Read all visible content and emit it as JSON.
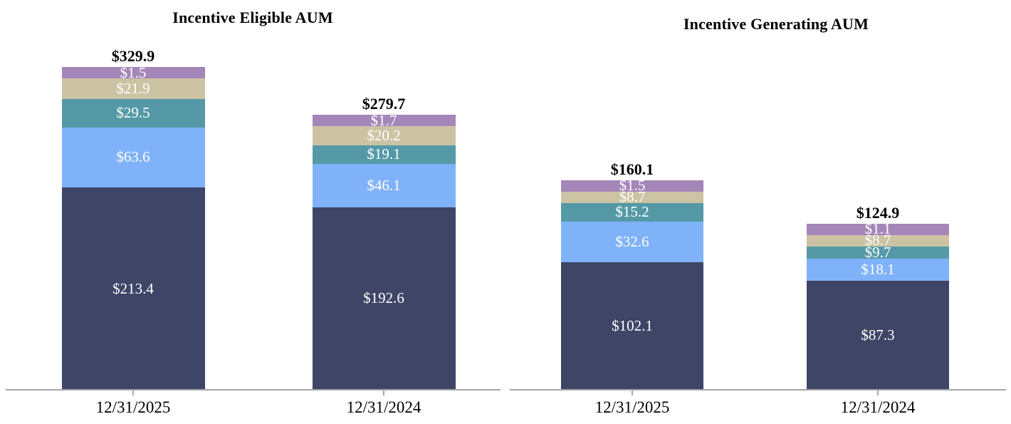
{
  "colors": {
    "background": "#ffffff",
    "axis_line": "#a6a6a6",
    "title_text": "#000000",
    "total_label_text": "#000000",
    "segment_label_text": "#ffffff",
    "segment_dark_navy": "#3f4567",
    "segment_light_blue": "#7fb2f8",
    "segment_teal": "#5599a7",
    "segment_tan": "#ccc3a4",
    "segment_purple": "#a486b8"
  },
  "chart_data": [
    {
      "type": "bar",
      "variant": "stacked-column",
      "title": "Incentive Eligible AUM",
      "categories": [
        "12/31/2025",
        "12/31/2024"
      ],
      "value_prefix": "$",
      "stack_order": "bottom-to-top",
      "series": [
        {
          "color_name": "dark-navy",
          "color": "#3f4567",
          "values": [
            213.4,
            192.6
          ]
        },
        {
          "color_name": "light-blue",
          "color": "#7fb2f8",
          "values": [
            63.6,
            46.1
          ]
        },
        {
          "color_name": "teal",
          "color": "#5599a7",
          "values": [
            29.5,
            19.1
          ]
        },
        {
          "color_name": "tan",
          "color": "#ccc3a4",
          "values": [
            21.9,
            20.2
          ]
        },
        {
          "color_name": "purple",
          "color": "#a486b8",
          "values": [
            1.5,
            1.7
          ]
        }
      ],
      "segment_labels": [
        [
          "$213.4",
          "$63.6",
          "$29.5",
          "$21.9",
          "$1.5"
        ],
        [
          "$192.6",
          "$46.1",
          "$19.1",
          "$20.2",
          "$1.7"
        ]
      ],
      "totals": [
        329.9,
        279.7
      ],
      "total_labels": [
        "$329.9",
        "$279.7"
      ],
      "legend": "none",
      "gridlines": false,
      "y_axis": "hidden"
    },
    {
      "type": "bar",
      "variant": "stacked-column",
      "title": "Incentive Generating AUM",
      "categories": [
        "12/31/2025",
        "12/31/2024"
      ],
      "value_prefix": "$",
      "stack_order": "bottom-to-top",
      "series": [
        {
          "color_name": "dark-navy",
          "color": "#3f4567",
          "values": [
            102.1,
            87.3
          ]
        },
        {
          "color_name": "light-blue",
          "color": "#7fb2f8",
          "values": [
            32.6,
            18.1
          ]
        },
        {
          "color_name": "teal",
          "color": "#5599a7",
          "values": [
            15.2,
            9.7
          ]
        },
        {
          "color_name": "tan",
          "color": "#ccc3a4",
          "values": [
            8.7,
            8.7
          ]
        },
        {
          "color_name": "purple",
          "color": "#a486b8",
          "values": [
            1.5,
            1.1
          ]
        }
      ],
      "segment_labels": [
        [
          "$102.1",
          "$32.6",
          "$15.2",
          "$8.7",
          "$1.5"
        ],
        [
          "$87.3",
          "$18.1",
          "$9.7",
          "$8.7",
          "$1.1"
        ]
      ],
      "totals": [
        160.1,
        124.9
      ],
      "total_labels": [
        "$160.1",
        "$124.9"
      ],
      "legend": "none",
      "gridlines": false,
      "y_axis": "hidden"
    }
  ]
}
